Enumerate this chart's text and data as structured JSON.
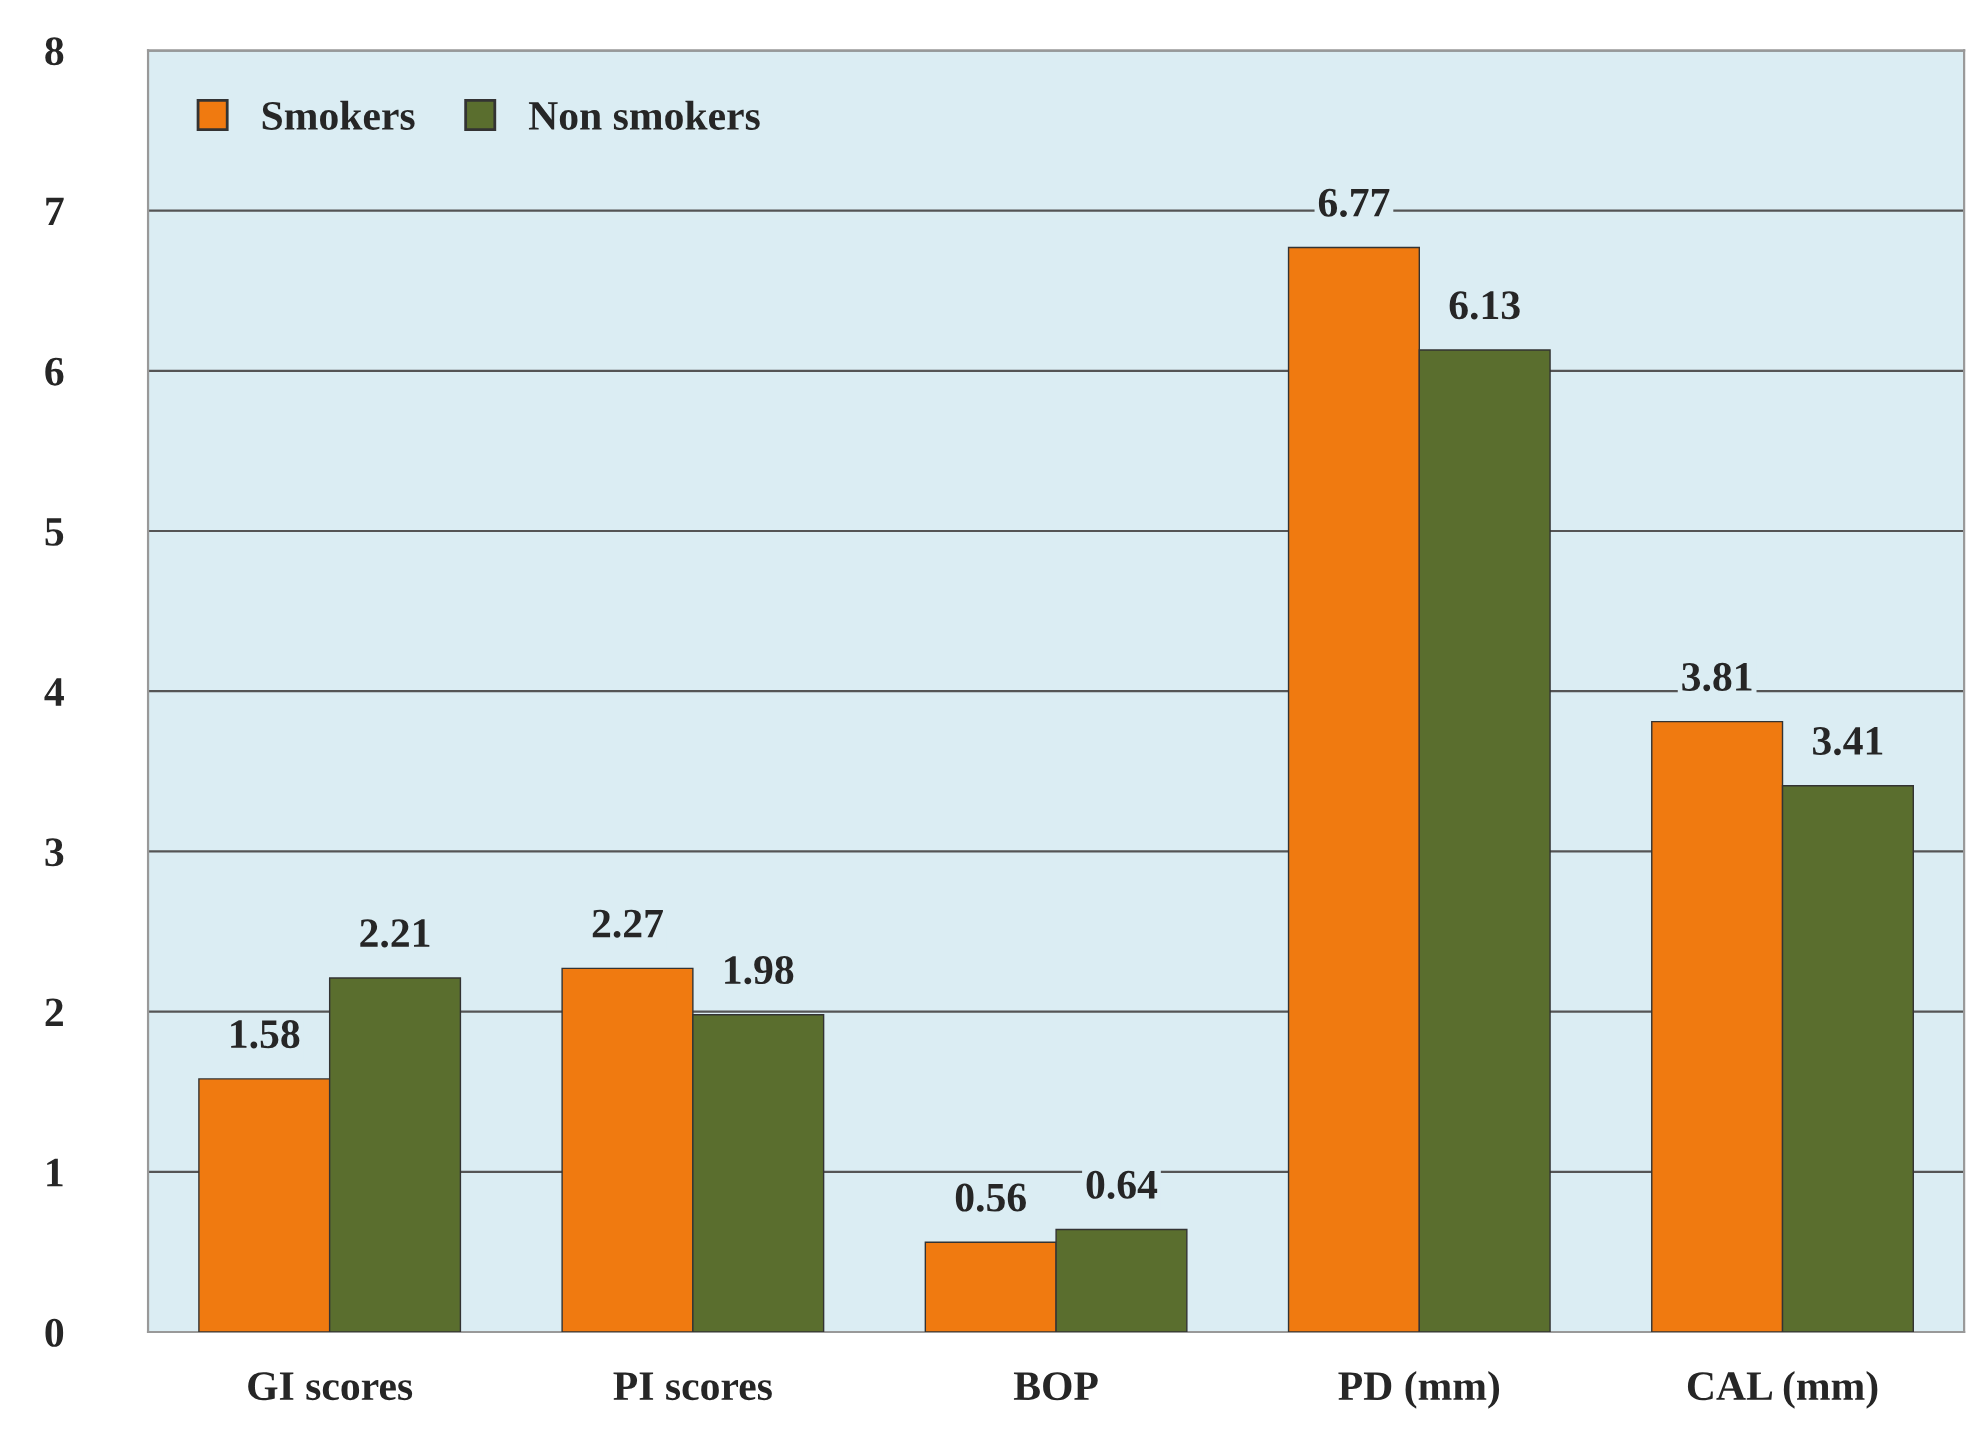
{
  "chart_data": {
    "type": "bar",
    "categories": [
      "GI scores",
      "PI scores",
      "BOP",
      "PD (mm)",
      "CAL (mm)"
    ],
    "series": [
      {
        "name": "Smokers",
        "color": "#f07a10",
        "values": [
          1.58,
          2.27,
          0.56,
          6.77,
          3.81
        ]
      },
      {
        "name": "Non smokers",
        "color": "#5a6e2e",
        "values": [
          2.21,
          1.98,
          0.64,
          6.13,
          3.41
        ]
      }
    ],
    "ylim": [
      0,
      8
    ],
    "yticks": [
      0,
      1,
      2,
      3,
      4,
      5,
      6,
      7,
      8
    ],
    "grid": "y",
    "legend": "top left",
    "data_labels": true
  }
}
